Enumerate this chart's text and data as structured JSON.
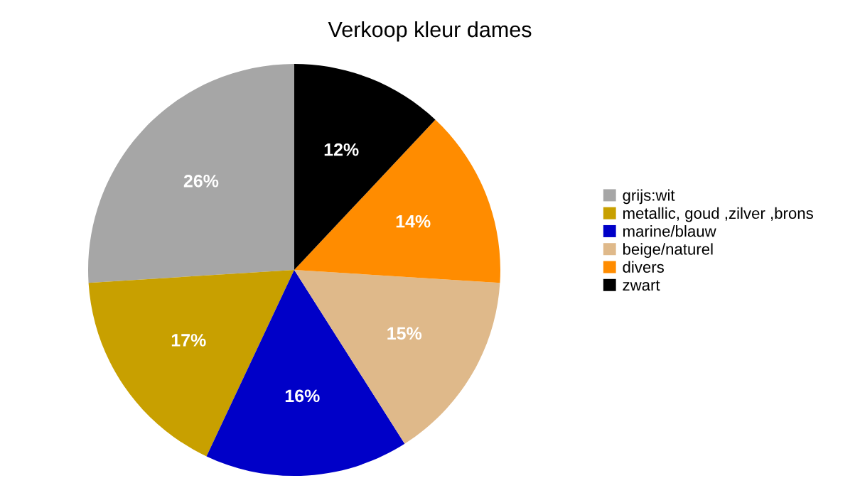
{
  "chart_data": {
    "type": "pie",
    "title": "Verkoop kleur dames",
    "categories": [
      "grijs:wit",
      "metallic, goud ,zilver ,brons",
      "marine/blauw",
      "beige/naturel",
      "divers",
      "zwart"
    ],
    "values": [
      26,
      17,
      16,
      15,
      14,
      12
    ],
    "value_labels": [
      "26%",
      "17%",
      "16%",
      "15%",
      "14%",
      "12%"
    ],
    "colors": [
      "#a6a6a6",
      "#c8a000",
      "#0000c8",
      "#dfb98a",
      "#ff8c00",
      "#000000"
    ],
    "legend": "right"
  }
}
